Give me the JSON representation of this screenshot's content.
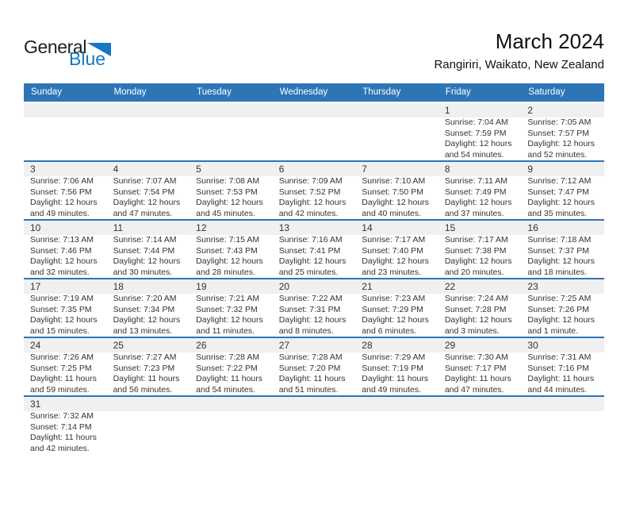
{
  "logo": {
    "text_black": "General",
    "text_blue": "Blue"
  },
  "header": {
    "title": "March 2024",
    "location": "Rangiriri, Waikato, New Zealand"
  },
  "weekdays": [
    "Sunday",
    "Monday",
    "Tuesday",
    "Wednesday",
    "Thursday",
    "Friday",
    "Saturday"
  ],
  "colors": {
    "header_bar": "#2e75b5",
    "row_divider": "#2e75b5",
    "day_band": "#f0f0f0",
    "logo_blue": "#1379c3",
    "header_text": "#ffffff",
    "cell_text": "#333333"
  },
  "weeks": [
    [
      null,
      null,
      null,
      null,
      null,
      {
        "day": "1",
        "lines": [
          "Sunrise: 7:04 AM",
          "Sunset: 7:59 PM",
          "Daylight: 12 hours",
          "and 54 minutes."
        ]
      },
      {
        "day": "2",
        "lines": [
          "Sunrise: 7:05 AM",
          "Sunset: 7:57 PM",
          "Daylight: 12 hours",
          "and 52 minutes."
        ]
      }
    ],
    [
      {
        "day": "3",
        "lines": [
          "Sunrise: 7:06 AM",
          "Sunset: 7:56 PM",
          "Daylight: 12 hours",
          "and 49 minutes."
        ]
      },
      {
        "day": "4",
        "lines": [
          "Sunrise: 7:07 AM",
          "Sunset: 7:54 PM",
          "Daylight: 12 hours",
          "and 47 minutes."
        ]
      },
      {
        "day": "5",
        "lines": [
          "Sunrise: 7:08 AM",
          "Sunset: 7:53 PM",
          "Daylight: 12 hours",
          "and 45 minutes."
        ]
      },
      {
        "day": "6",
        "lines": [
          "Sunrise: 7:09 AM",
          "Sunset: 7:52 PM",
          "Daylight: 12 hours",
          "and 42 minutes."
        ]
      },
      {
        "day": "7",
        "lines": [
          "Sunrise: 7:10 AM",
          "Sunset: 7:50 PM",
          "Daylight: 12 hours",
          "and 40 minutes."
        ]
      },
      {
        "day": "8",
        "lines": [
          "Sunrise: 7:11 AM",
          "Sunset: 7:49 PM",
          "Daylight: 12 hours",
          "and 37 minutes."
        ]
      },
      {
        "day": "9",
        "lines": [
          "Sunrise: 7:12 AM",
          "Sunset: 7:47 PM",
          "Daylight: 12 hours",
          "and 35 minutes."
        ]
      }
    ],
    [
      {
        "day": "10",
        "lines": [
          "Sunrise: 7:13 AM",
          "Sunset: 7:46 PM",
          "Daylight: 12 hours",
          "and 32 minutes."
        ]
      },
      {
        "day": "11",
        "lines": [
          "Sunrise: 7:14 AM",
          "Sunset: 7:44 PM",
          "Daylight: 12 hours",
          "and 30 minutes."
        ]
      },
      {
        "day": "12",
        "lines": [
          "Sunrise: 7:15 AM",
          "Sunset: 7:43 PM",
          "Daylight: 12 hours",
          "and 28 minutes."
        ]
      },
      {
        "day": "13",
        "lines": [
          "Sunrise: 7:16 AM",
          "Sunset: 7:41 PM",
          "Daylight: 12 hours",
          "and 25 minutes."
        ]
      },
      {
        "day": "14",
        "lines": [
          "Sunrise: 7:17 AM",
          "Sunset: 7:40 PM",
          "Daylight: 12 hours",
          "and 23 minutes."
        ]
      },
      {
        "day": "15",
        "lines": [
          "Sunrise: 7:17 AM",
          "Sunset: 7:38 PM",
          "Daylight: 12 hours",
          "and 20 minutes."
        ]
      },
      {
        "day": "16",
        "lines": [
          "Sunrise: 7:18 AM",
          "Sunset: 7:37 PM",
          "Daylight: 12 hours",
          "and 18 minutes."
        ]
      }
    ],
    [
      {
        "day": "17",
        "lines": [
          "Sunrise: 7:19 AM",
          "Sunset: 7:35 PM",
          "Daylight: 12 hours",
          "and 15 minutes."
        ]
      },
      {
        "day": "18",
        "lines": [
          "Sunrise: 7:20 AM",
          "Sunset: 7:34 PM",
          "Daylight: 12 hours",
          "and 13 minutes."
        ]
      },
      {
        "day": "19",
        "lines": [
          "Sunrise: 7:21 AM",
          "Sunset: 7:32 PM",
          "Daylight: 12 hours",
          "and 11 minutes."
        ]
      },
      {
        "day": "20",
        "lines": [
          "Sunrise: 7:22 AM",
          "Sunset: 7:31 PM",
          "Daylight: 12 hours",
          "and 8 minutes."
        ]
      },
      {
        "day": "21",
        "lines": [
          "Sunrise: 7:23 AM",
          "Sunset: 7:29 PM",
          "Daylight: 12 hours",
          "and 6 minutes."
        ]
      },
      {
        "day": "22",
        "lines": [
          "Sunrise: 7:24 AM",
          "Sunset: 7:28 PM",
          "Daylight: 12 hours",
          "and 3 minutes."
        ]
      },
      {
        "day": "23",
        "lines": [
          "Sunrise: 7:25 AM",
          "Sunset: 7:26 PM",
          "Daylight: 12 hours",
          "and 1 minute."
        ]
      }
    ],
    [
      {
        "day": "24",
        "lines": [
          "Sunrise: 7:26 AM",
          "Sunset: 7:25 PM",
          "Daylight: 11 hours",
          "and 59 minutes."
        ]
      },
      {
        "day": "25",
        "lines": [
          "Sunrise: 7:27 AM",
          "Sunset: 7:23 PM",
          "Daylight: 11 hours",
          "and 56 minutes."
        ]
      },
      {
        "day": "26",
        "lines": [
          "Sunrise: 7:28 AM",
          "Sunset: 7:22 PM",
          "Daylight: 11 hours",
          "and 54 minutes."
        ]
      },
      {
        "day": "27",
        "lines": [
          "Sunrise: 7:28 AM",
          "Sunset: 7:20 PM",
          "Daylight: 11 hours",
          "and 51 minutes."
        ]
      },
      {
        "day": "28",
        "lines": [
          "Sunrise: 7:29 AM",
          "Sunset: 7:19 PM",
          "Daylight: 11 hours",
          "and 49 minutes."
        ]
      },
      {
        "day": "29",
        "lines": [
          "Sunrise: 7:30 AM",
          "Sunset: 7:17 PM",
          "Daylight: 11 hours",
          "and 47 minutes."
        ]
      },
      {
        "day": "30",
        "lines": [
          "Sunrise: 7:31 AM",
          "Sunset: 7:16 PM",
          "Daylight: 11 hours",
          "and 44 minutes."
        ]
      }
    ],
    [
      {
        "day": "31",
        "lines": [
          "Sunrise: 7:32 AM",
          "Sunset: 7:14 PM",
          "Daylight: 11 hours",
          "and 42 minutes."
        ]
      },
      null,
      null,
      null,
      null,
      null,
      null
    ]
  ]
}
